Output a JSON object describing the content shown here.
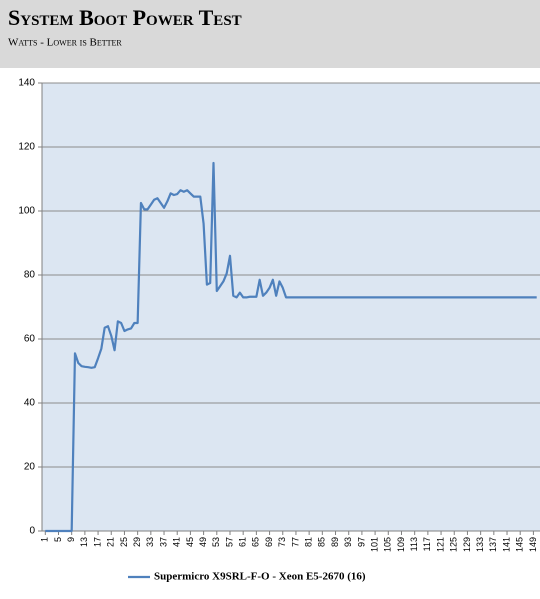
{
  "chart_data": {
    "type": "line",
    "title": "System Boot Power Test",
    "subtitle": "Watts - Lower is Better",
    "x": [
      1,
      2,
      3,
      4,
      5,
      6,
      7,
      8,
      9,
      10,
      11,
      12,
      13,
      14,
      15,
      16,
      17,
      18,
      19,
      20,
      21,
      22,
      23,
      24,
      25,
      26,
      27,
      28,
      29,
      30,
      31,
      32,
      33,
      34,
      35,
      36,
      37,
      38,
      39,
      40,
      41,
      42,
      43,
      44,
      45,
      46,
      47,
      48,
      49,
      50,
      51,
      52,
      53,
      54,
      55,
      56,
      57,
      58,
      59,
      60,
      61,
      62,
      63,
      64,
      65,
      66,
      67,
      68,
      69,
      70,
      71,
      72,
      73,
      74,
      75,
      76,
      77,
      78,
      79,
      80,
      81,
      82,
      83,
      84,
      85,
      86,
      87,
      88,
      89,
      90,
      91,
      92,
      93,
      94,
      95,
      96,
      97,
      98,
      99,
      100,
      101,
      102,
      103,
      104,
      105,
      106,
      107,
      108,
      109,
      110,
      111,
      112,
      113,
      114,
      115,
      116,
      117,
      118,
      119,
      120,
      121,
      122,
      123,
      124,
      125,
      126,
      127,
      128,
      129,
      130,
      131,
      132,
      133,
      134,
      135,
      136,
      137,
      138,
      139,
      140,
      141,
      142,
      143,
      144,
      145,
      146,
      147,
      148,
      149,
      150
    ],
    "series": [
      {
        "name": "Supermicro X9SRL-F-O - Xeon E5-2670 (16)",
        "color": "#4f81bd",
        "values": [
          0,
          0,
          0,
          0,
          0,
          0,
          0,
          0,
          0,
          55.5,
          52.5,
          51.5,
          51.3,
          51.2,
          51,
          51.2,
          54,
          57,
          63.5,
          64,
          61,
          56.5,
          65.5,
          65,
          62.5,
          63,
          63.3,
          65,
          65,
          102.5,
          100.5,
          100.5,
          102,
          103.5,
          104,
          102.5,
          101,
          103,
          105.5,
          105,
          105.3,
          106.5,
          106,
          106.5,
          105.5,
          104.5,
          104.5,
          104.5,
          96,
          77,
          77.5,
          115,
          75,
          76.5,
          78,
          80.5,
          86,
          73.5,
          73,
          74.5,
          73,
          73,
          73.2,
          73.2,
          73.2,
          78.5,
          73.5,
          74.5,
          76,
          78.5,
          73.5,
          78,
          76,
          73,
          73,
          73,
          73,
          73,
          73,
          73,
          73,
          73,
          73,
          73,
          73,
          73,
          73,
          73,
          73,
          73,
          73,
          73,
          73,
          73,
          73,
          73,
          73,
          73,
          73,
          73,
          73,
          73,
          73,
          73,
          73,
          73,
          73,
          73,
          73,
          73,
          73,
          73,
          73,
          73,
          73,
          73,
          73,
          73,
          73,
          73,
          73,
          73,
          73,
          73,
          73,
          73,
          73,
          73,
          73,
          73,
          73,
          73,
          73,
          73,
          73,
          73,
          73,
          73,
          73,
          73,
          73,
          73,
          73,
          73,
          73,
          73,
          73,
          73,
          73,
          73
        ]
      }
    ],
    "xlim": [
      0,
      151
    ],
    "xticks": [
      1,
      5,
      9,
      13,
      17,
      21,
      25,
      29,
      33,
      37,
      41,
      45,
      49,
      53,
      57,
      61,
      65,
      69,
      73,
      77,
      81,
      85,
      89,
      93,
      97,
      101,
      105,
      109,
      113,
      117,
      121,
      125,
      129,
      133,
      137,
      141,
      145,
      149
    ],
    "ylim": [
      0,
      140
    ],
    "yticks": [
      0,
      20,
      40,
      60,
      80,
      100,
      120,
      140
    ],
    "grid": true,
    "legend": "bottom"
  }
}
